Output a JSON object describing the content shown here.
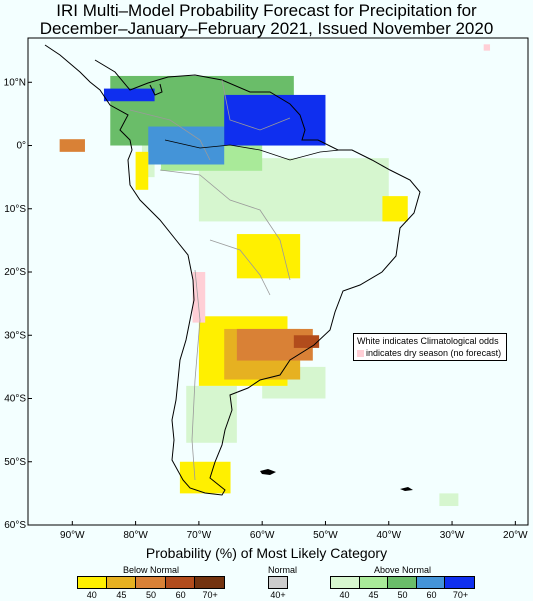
{
  "title": {
    "line1": "IRI Multi–Model Probability Forecast for Precipitation for",
    "line2": "December–January–February 2021, Issued November 2020"
  },
  "map": {
    "extent": {
      "lon_min": -97,
      "lon_max": -18,
      "lat_min": -60,
      "lat_max": 17
    },
    "lat_ticks": [
      {
        "value": 10,
        "label": "10°N"
      },
      {
        "value": 0,
        "label": "0°"
      },
      {
        "value": -10,
        "label": "10°S"
      },
      {
        "value": -20,
        "label": "20°S"
      },
      {
        "value": -30,
        "label": "30°S"
      },
      {
        "value": -40,
        "label": "40°S"
      },
      {
        "value": -50,
        "label": "50°S"
      },
      {
        "value": -60,
        "label": "60°S"
      }
    ],
    "lon_ticks": [
      {
        "value": -90,
        "label": "90°W"
      },
      {
        "value": -80,
        "label": "80°W"
      },
      {
        "value": -70,
        "label": "70°W"
      },
      {
        "value": -60,
        "label": "60°W"
      },
      {
        "value": -50,
        "label": "50°W"
      },
      {
        "value": -40,
        "label": "40°W"
      },
      {
        "value": -30,
        "label": "30°W"
      },
      {
        "value": -20,
        "label": "20°W"
      }
    ],
    "colors": {
      "background": "#F3FFFF",
      "coastline": "#000000",
      "borders": "#9A9A9A",
      "dry_season": "#FFCFD6"
    },
    "regions": [
      {
        "category": "above",
        "level": 40,
        "lon": [
          -82,
          -55
        ],
        "lat": [
          4,
          10
        ]
      },
      {
        "category": "above",
        "level": 40,
        "lon": [
          -79,
          -77
        ],
        "lat": [
          -5,
          2
        ]
      },
      {
        "category": "above",
        "level": 40,
        "lon": [
          -70,
          -40
        ],
        "lat": [
          -12,
          -2
        ]
      },
      {
        "category": "above",
        "level": 40,
        "lon": [
          -60,
          -50
        ],
        "lat": [
          -40,
          -35
        ]
      },
      {
        "category": "above",
        "level": 40,
        "lon": [
          -72,
          -64
        ],
        "lat": [
          -47,
          -38
        ]
      },
      {
        "category": "above",
        "level": 40,
        "lon": [
          -32,
          -29
        ],
        "lat": [
          -57,
          -55
        ]
      },
      {
        "category": "above",
        "level": 45,
        "lon": [
          -76,
          -60
        ],
        "lat": [
          -4,
          6
        ]
      },
      {
        "category": "above",
        "level": 50,
        "lon": [
          -84,
          -55
        ],
        "lat": [
          0,
          11
        ]
      },
      {
        "category": "above",
        "level": 60,
        "lon": [
          -78,
          -66
        ],
        "lat": [
          -3,
          3
        ]
      },
      {
        "category": "above",
        "level": 70,
        "lon": [
          -85,
          -77
        ],
        "lat": [
          7,
          9
        ]
      },
      {
        "category": "above",
        "level": 70,
        "lon": [
          -66,
          -50
        ],
        "lat": [
          0,
          8
        ]
      },
      {
        "category": "below",
        "level": 40,
        "lon": [
          -80,
          -78
        ],
        "lat": [
          -7,
          -1
        ]
      },
      {
        "category": "below",
        "level": 40,
        "lon": [
          -64,
          -54
        ],
        "lat": [
          -21,
          -14
        ]
      },
      {
        "category": "below",
        "level": 40,
        "lon": [
          -70,
          -56
        ],
        "lat": [
          -38,
          -27
        ]
      },
      {
        "category": "below",
        "level": 40,
        "lon": [
          -73,
          -65
        ],
        "lat": [
          -55,
          -50
        ]
      },
      {
        "category": "below",
        "level": 40,
        "lon": [
          -41,
          -37
        ],
        "lat": [
          -12,
          -8
        ]
      },
      {
        "category": "below",
        "level": 45,
        "lon": [
          -66,
          -54
        ],
        "lat": [
          -37,
          -29
        ]
      },
      {
        "category": "below",
        "level": 50,
        "lon": [
          -64,
          -52
        ],
        "lat": [
          -34,
          -29
        ]
      },
      {
        "category": "below",
        "level": 50,
        "lon": [
          -92,
          -88
        ],
        "lat": [
          -1,
          1
        ]
      },
      {
        "category": "below",
        "level": 60,
        "lon": [
          -55,
          -51
        ],
        "lat": [
          -32,
          -30
        ]
      },
      {
        "category": "dry",
        "level": 0,
        "lon": [
          -71,
          -69
        ],
        "lat": [
          -28,
          -20
        ]
      },
      {
        "category": "dry",
        "level": 0,
        "lon": [
          -25,
          -24
        ],
        "lat": [
          15,
          16
        ]
      }
    ]
  },
  "legend": {
    "title": "Probability (%) of Most Likely Category",
    "below": {
      "name": "Below Normal",
      "colors": [
        "#FFF000",
        "#E6B121",
        "#D98136",
        "#B24C1C",
        "#73330F"
      ],
      "labels": [
        "40",
        "45",
        "50",
        "60",
        "70+"
      ]
    },
    "normal": {
      "name": "Normal",
      "colors": [
        "#CCCCCC"
      ],
      "labels": [
        "40+"
      ]
    },
    "above": {
      "name": "Above Normal",
      "colors": [
        "#D6F6CF",
        "#A9EA99",
        "#6ABD69",
        "#4494D8",
        "#0F2FEF"
      ],
      "labels": [
        "40",
        "45",
        "50",
        "60",
        "70+"
      ]
    }
  },
  "info_box": {
    "line1": "White indicates Climatological odds",
    "line2": "indicates dry season (no forecast)"
  }
}
